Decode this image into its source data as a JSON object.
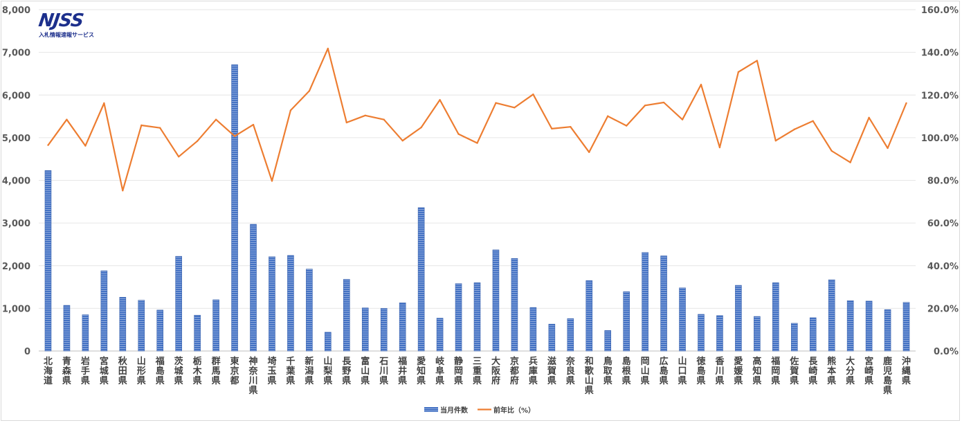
{
  "logo": {
    "mark": "NJSS",
    "subtitle": "入札情報速報サービス"
  },
  "chart_data": {
    "type": "bar+line",
    "categories": [
      "北海道",
      "青森県",
      "岩手県",
      "宮城県",
      "秋田県",
      "山形県",
      "福島県",
      "茨城県",
      "栃木県",
      "群馬県",
      "東京都",
      "神奈川県",
      "埼玉県",
      "千葉県",
      "新潟県",
      "山梨県",
      "長野県",
      "富山県",
      "石川県",
      "福井県",
      "愛知県",
      "岐阜県",
      "静岡県",
      "三重県",
      "大阪府",
      "京都府",
      "兵庫県",
      "滋賀県",
      "奈良県",
      "和歌山県",
      "鳥取県",
      "島根県",
      "岡山県",
      "広島県",
      "山口県",
      "徳島県",
      "香川県",
      "愛媛県",
      "高知県",
      "福岡県",
      "佐賀県",
      "長崎県",
      "熊本県",
      "大分県",
      "宮崎県",
      "鹿児島県",
      "沖縄県"
    ],
    "series": [
      {
        "name": "当月件数",
        "type": "bar",
        "axis": "left",
        "color": "#4472c4",
        "values": [
          4230,
          1070,
          850,
          1880,
          1260,
          1190,
          960,
          2220,
          840,
          1200,
          6710,
          2970,
          2210,
          2240,
          1920,
          440,
          1680,
          1010,
          1000,
          1130,
          3360,
          770,
          1580,
          1600,
          2370,
          2170,
          1020,
          630,
          760,
          1650,
          480,
          1390,
          2310,
          2230,
          1480,
          860,
          830,
          1540,
          810,
          1600,
          650,
          780,
          1670,
          1180,
          1170,
          970,
          1140
        ]
      },
      {
        "name": "前年比（%）",
        "type": "line",
        "axis": "right",
        "color": "#ed7d31",
        "values": [
          96.5,
          108.5,
          96.2,
          116.2,
          75.2,
          105.8,
          104.6,
          91.1,
          98.4,
          108.5,
          100.7,
          106.1,
          79.7,
          112.8,
          121.9,
          141.8,
          107.1,
          110.4,
          108.5,
          98.6,
          104.8,
          117.7,
          101.7,
          97.5,
          116.3,
          114.1,
          120.3,
          104.2,
          105.1,
          93.2,
          110.1,
          105.6,
          115.1,
          116.5,
          108.5,
          124.9,
          95.4,
          130.8,
          136.1,
          98.6,
          103.9,
          107.8,
          93.8,
          88.4,
          109.4,
          95.1,
          116.2
        ]
      }
    ],
    "y_left": {
      "min": 0,
      "max": 8000,
      "step": 1000,
      "tick_labels": [
        "0",
        "1,000",
        "2,000",
        "3,000",
        "4,000",
        "5,000",
        "6,000",
        "7,000",
        "8,000"
      ]
    },
    "y_right": {
      "min": 0,
      "max": 160,
      "step": 20,
      "tick_labels": [
        "0.0%",
        "20.0%",
        "40.0%",
        "60.0%",
        "80.0%",
        "100.0%",
        "120.0%",
        "140.0%",
        "160.0%"
      ]
    },
    "grid": true,
    "legend": "bottom-center",
    "title": ""
  }
}
